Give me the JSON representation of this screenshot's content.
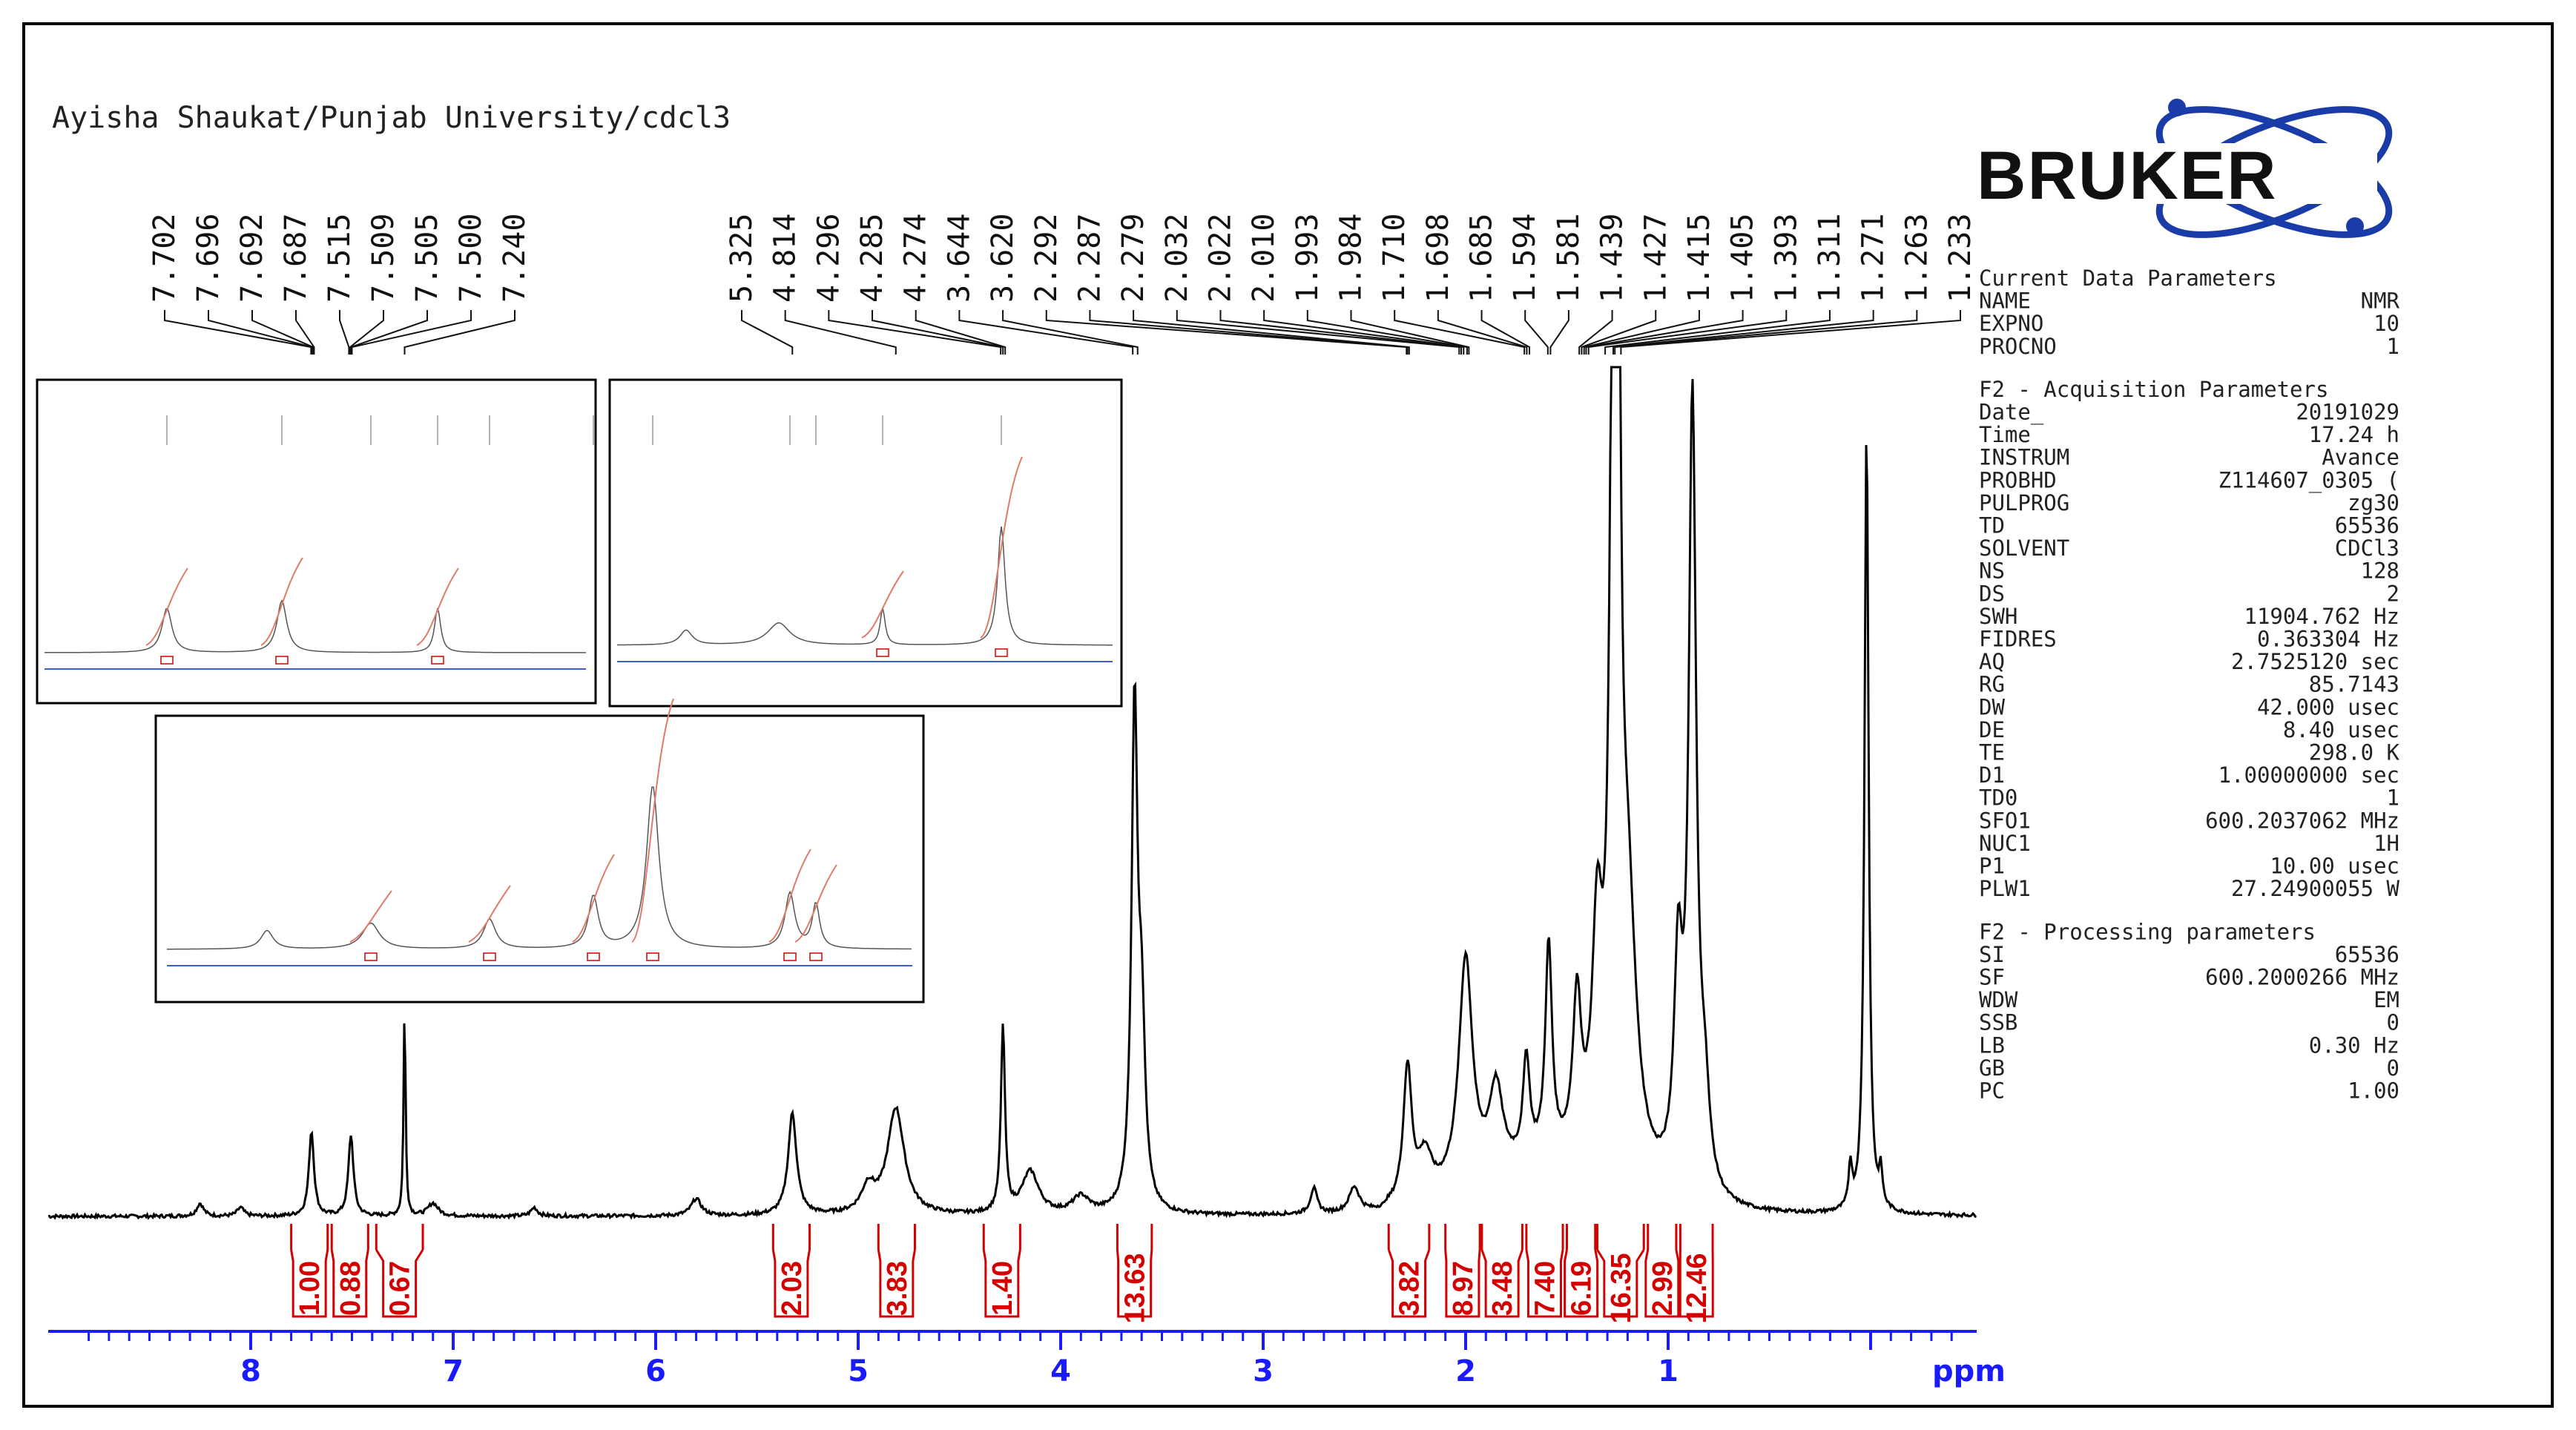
{
  "header": {
    "title": "Ayisha Shaukat/Punjab University/cdcl3"
  },
  "logo": {
    "text": "BRUKER",
    "color": "#1a3ca8"
  },
  "colors": {
    "axis": "#1a1aff",
    "integral": "#d40000",
    "spectrum": "#000000",
    "inset_integral": "#e07a6a"
  },
  "chart_data": {
    "type": "line",
    "title": "Ayisha Shaukat/Punjab University/cdcl3",
    "xlabel": "ppm",
    "ylabel": "",
    "xlim": [
      8.9,
      -0.5
    ],
    "x_reversed": true,
    "x_ticks": [
      "8",
      "7",
      "6",
      "5",
      "4",
      "3",
      "2",
      "1"
    ],
    "x_tick_values": [
      8,
      7,
      6,
      5,
      4,
      3,
      2,
      1
    ],
    "peak_labels": [
      "7.702",
      "7.696",
      "7.692",
      "7.687",
      "7.515",
      "7.509",
      "7.505",
      "7.500",
      "7.240",
      "5.325",
      "4.814",
      "4.296",
      "4.285",
      "4.274",
      "3.644",
      "3.620",
      "2.292",
      "2.287",
      "2.279",
      "2.032",
      "2.022",
      "2.010",
      "1.993",
      "1.984",
      "1.710",
      "1.698",
      "1.685",
      "1.594",
      "1.581",
      "1.439",
      "1.427",
      "1.415",
      "1.405",
      "1.393",
      "1.311",
      "1.271",
      "1.263",
      "1.233"
    ],
    "peak_positions": [
      7.702,
      7.696,
      7.692,
      7.687,
      7.515,
      7.509,
      7.505,
      7.5,
      7.24,
      5.325,
      4.814,
      4.296,
      4.285,
      4.274,
      3.644,
      3.62,
      2.292,
      2.287,
      2.279,
      2.032,
      2.022,
      2.01,
      1.993,
      1.984,
      1.71,
      1.698,
      1.685,
      1.594,
      1.581,
      1.439,
      1.427,
      1.415,
      1.405,
      1.393,
      1.311,
      1.271,
      1.263,
      1.233
    ],
    "peaks": [
      {
        "ppm": 8.25,
        "h": 0.015,
        "w": 0.02
      },
      {
        "ppm": 8.05,
        "h": 0.01,
        "w": 0.02
      },
      {
        "ppm": 7.7,
        "h": 0.1,
        "w": 0.015
      },
      {
        "ppm": 7.505,
        "h": 0.095,
        "w": 0.015
      },
      {
        "ppm": 7.24,
        "h": 0.245,
        "w": 0.006
      },
      {
        "ppm": 7.1,
        "h": 0.015,
        "w": 0.03
      },
      {
        "ppm": 6.6,
        "h": 0.01,
        "w": 0.02
      },
      {
        "ppm": 5.8,
        "h": 0.02,
        "w": 0.03
      },
      {
        "ppm": 5.325,
        "h": 0.12,
        "w": 0.025
      },
      {
        "ppm": 4.95,
        "h": 0.03,
        "w": 0.04
      },
      {
        "ppm": 4.814,
        "h": 0.125,
        "w": 0.05
      },
      {
        "ppm": 4.285,
        "h": 0.22,
        "w": 0.012
      },
      {
        "ppm": 4.15,
        "h": 0.05,
        "w": 0.05
      },
      {
        "ppm": 3.9,
        "h": 0.02,
        "w": 0.05
      },
      {
        "ppm": 3.635,
        "h": 0.585,
        "w": 0.018
      },
      {
        "ppm": 3.6,
        "h": 0.2,
        "w": 0.02
      },
      {
        "ppm": 2.75,
        "h": 0.03,
        "w": 0.02
      },
      {
        "ppm": 2.55,
        "h": 0.03,
        "w": 0.03
      },
      {
        "ppm": 2.287,
        "h": 0.16,
        "w": 0.025
      },
      {
        "ppm": 2.2,
        "h": 0.05,
        "w": 0.04
      },
      {
        "ppm": 2.0,
        "h": 0.27,
        "w": 0.04
      },
      {
        "ppm": 1.85,
        "h": 0.1,
        "w": 0.04
      },
      {
        "ppm": 1.7,
        "h": 0.12,
        "w": 0.02
      },
      {
        "ppm": 1.59,
        "h": 0.25,
        "w": 0.02
      },
      {
        "ppm": 1.45,
        "h": 0.18,
        "w": 0.025
      },
      {
        "ppm": 1.35,
        "h": 0.25,
        "w": 0.03
      },
      {
        "ppm": 1.27,
        "h": 0.95,
        "w": 0.02
      },
      {
        "ppm": 1.25,
        "h": 0.95,
        "w": 0.015
      },
      {
        "ppm": 1.2,
        "h": 0.3,
        "w": 0.05
      },
      {
        "ppm": 0.95,
        "h": 0.25,
        "w": 0.025
      },
      {
        "ppm": 0.88,
        "h": 0.92,
        "w": 0.022
      },
      {
        "ppm": 0.82,
        "h": 0.1,
        "w": 0.03
      },
      {
        "ppm": 0.1,
        "h": 0.05,
        "w": 0.01
      },
      {
        "ppm": 0.02,
        "h": 0.93,
        "w": 0.012
      },
      {
        "ppm": -0.05,
        "h": 0.04,
        "w": 0.01
      }
    ],
    "integrals": [
      {
        "from": 7.8,
        "to": 7.62,
        "value": "1.00"
      },
      {
        "from": 7.6,
        "to": 7.42,
        "value": "0.88"
      },
      {
        "from": 7.38,
        "to": 7.15,
        "value": "0.67"
      },
      {
        "from": 5.42,
        "to": 5.24,
        "value": "2.03"
      },
      {
        "from": 4.9,
        "to": 4.72,
        "value": "3.83"
      },
      {
        "from": 4.38,
        "to": 4.2,
        "value": "1.40"
      },
      {
        "from": 3.72,
        "to": 3.55,
        "value": "13.63"
      },
      {
        "from": 2.38,
        "to": 2.18,
        "value": "3.82"
      },
      {
        "from": 2.1,
        "to": 1.93,
        "value": "8.97"
      },
      {
        "from": 1.92,
        "to": 1.72,
        "value": "3.48"
      },
      {
        "from": 1.7,
        "to": 1.52,
        "value": "7.40"
      },
      {
        "from": 1.5,
        "to": 1.36,
        "value": "6.19"
      },
      {
        "from": 1.35,
        "to": 1.12,
        "value": "16.35"
      },
      {
        "from": 1.1,
        "to": 0.96,
        "value": "2.99"
      },
      {
        "from": 0.94,
        "to": 0.78,
        "value": "12.46"
      }
    ]
  },
  "params": {
    "current_title": "Current Data Parameters",
    "current": [
      {
        "k": "NAME",
        "v": "NMR"
      },
      {
        "k": "EXPNO",
        "v": "10"
      },
      {
        "k": "PROCNO",
        "v": "1"
      }
    ],
    "acq_title": "F2 - Acquisition Parameters",
    "acq": [
      {
        "k": "Date_",
        "v": "20191029"
      },
      {
        "k": "Time",
        "v": "17.24 h"
      },
      {
        "k": "INSTRUM",
        "v": "Avance"
      },
      {
        "k": "PROBHD",
        "v": "Z114607_0305 ("
      },
      {
        "k": "PULPROG",
        "v": "zg30"
      },
      {
        "k": "TD",
        "v": "65536"
      },
      {
        "k": "SOLVENT",
        "v": "CDCl3"
      },
      {
        "k": "NS",
        "v": "128"
      },
      {
        "k": "DS",
        "v": "2"
      },
      {
        "k": "SWH",
        "v": "11904.762 Hz"
      },
      {
        "k": "FIDRES",
        "v": "0.363304 Hz"
      },
      {
        "k": "AQ",
        "v": "2.7525120 sec"
      },
      {
        "k": "RG",
        "v": "85.7143"
      },
      {
        "k": "DW",
        "v": "42.000 usec"
      },
      {
        "k": "DE",
        "v": "8.40 usec"
      },
      {
        "k": "TE",
        "v": "298.0 K"
      },
      {
        "k": "D1",
        "v": "1.00000000 sec"
      },
      {
        "k": "TD0",
        "v": "1"
      },
      {
        "k": "SFO1",
        "v": "600.2037062 MHz"
      },
      {
        "k": "NUC1",
        "v": "1H"
      },
      {
        "k": "P1",
        "v": "10.00 usec"
      },
      {
        "k": "PLW1",
        "v": "27.24900055 W"
      }
    ],
    "proc_title": "F2 - Processing parameters",
    "proc": [
      {
        "k": "SI",
        "v": "65536"
      },
      {
        "k": "SF",
        "v": "600.2000266 MHz"
      },
      {
        "k": "WDW",
        "v": "EM"
      },
      {
        "k": "SSB",
        "v": "0"
      },
      {
        "k": "LB",
        "v": "0.30 Hz"
      },
      {
        "k": "GB",
        "v": "0"
      },
      {
        "k": "PC",
        "v": "1.00"
      }
    ]
  }
}
